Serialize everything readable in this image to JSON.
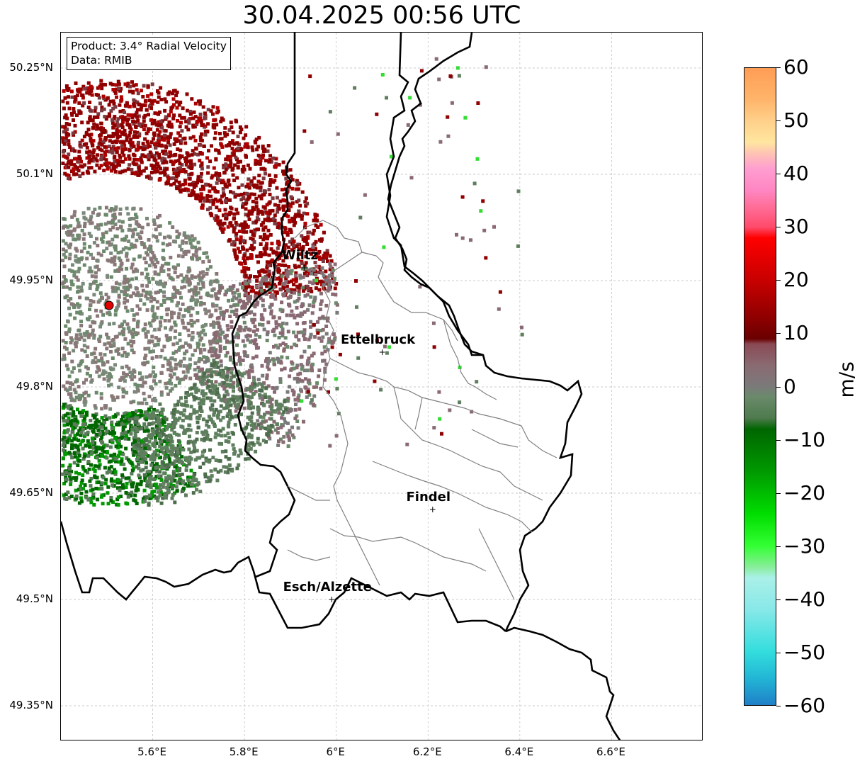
{
  "title": "30.04.2025 00:56 UTC",
  "info": {
    "product": "Product: 3.4° Radial Velocity",
    "data": "Data: RMIB"
  },
  "axes": {
    "lat_ticks": [
      "50.25°N",
      "50.1°N",
      "49.95°N",
      "49.8°N",
      "49.65°N",
      "49.5°N",
      "49.35°N"
    ],
    "lon_ticks": [
      "5.6°E",
      "5.8°E",
      "6°E",
      "6.2°E",
      "6.4°E",
      "6.6°E"
    ],
    "lat_range": [
      49.3,
      50.3
    ],
    "lon_range": [
      5.4,
      6.8
    ],
    "grid": true
  },
  "cities": [
    {
      "name": "Wiltz",
      "lon": 5.93,
      "lat": 49.968
    },
    {
      "name": "Ettelbruck",
      "lon": 6.1,
      "lat": 49.849
    },
    {
      "name": "Findel",
      "lon": 6.21,
      "lat": 49.627
    },
    {
      "name": "Esch/Alzette",
      "lon": 5.99,
      "lat": 49.5
    }
  ],
  "radar_site": {
    "lon": 5.505,
    "lat": 49.915
  },
  "colorbar": {
    "label": "m/s",
    "ticks": [
      "60",
      "50",
      "40",
      "30",
      "20",
      "10",
      "0",
      "−10",
      "−20",
      "−30",
      "−40",
      "−50",
      "−60"
    ],
    "range": [
      -60,
      60
    ],
    "stops": [
      {
        "v": 60,
        "c": "#ff9d55"
      },
      {
        "v": 54,
        "c": "#ffb56b"
      },
      {
        "v": 50,
        "c": "#ffd08a"
      },
      {
        "v": 46,
        "c": "#ffe6a0"
      },
      {
        "v": 44,
        "c": "#ffc4b4"
      },
      {
        "v": 41,
        "c": "#ff9ed0"
      },
      {
        "v": 37,
        "c": "#ff86c2"
      },
      {
        "v": 34,
        "c": "#ff6f9a"
      },
      {
        "v": 30,
        "c": "#ff4a6a"
      },
      {
        "v": 28,
        "c": "#ff0000"
      },
      {
        "v": 20,
        "c": "#c80000"
      },
      {
        "v": 13,
        "c": "#8f0000"
      },
      {
        "v": 9,
        "c": "#6a0000"
      },
      {
        "v": 8,
        "c": "#8a4a55"
      },
      {
        "v": 4,
        "c": "#8a6a72"
      },
      {
        "v": 0,
        "c": "#7a7a7a"
      },
      {
        "v": -2,
        "c": "#6a8a6a"
      },
      {
        "v": -6,
        "c": "#4d7a4d"
      },
      {
        "v": -8,
        "c": "#006600"
      },
      {
        "v": -16,
        "c": "#009900"
      },
      {
        "v": -24,
        "c": "#00dd00"
      },
      {
        "v": -30,
        "c": "#33ff33"
      },
      {
        "v": -34,
        "c": "#88ee99"
      },
      {
        "v": -36,
        "c": "#aaf0e8"
      },
      {
        "v": -42,
        "c": "#88e8e8"
      },
      {
        "v": -50,
        "c": "#33dddd"
      },
      {
        "v": -55,
        "c": "#22b5d5"
      },
      {
        "v": -60,
        "c": "#2080c8"
      }
    ]
  }
}
